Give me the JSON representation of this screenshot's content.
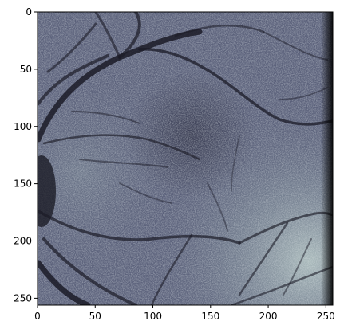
{
  "figure": {
    "image_kind": "retinal-fundus-scan",
    "colormap": "bone",
    "colors": {
      "dark": "#2a2c3d",
      "mid": "#5a607a",
      "light": "#9fb0b2",
      "highlight": "#c8d8d4",
      "vessel": "#1b1b27"
    }
  },
  "axes": {
    "x_range": [
      0,
      256
    ],
    "y_range": [
      0,
      256
    ],
    "y_inverted": true,
    "x_ticks": [
      {
        "value": 0,
        "label": "0"
      },
      {
        "value": 50,
        "label": "50"
      },
      {
        "value": 100,
        "label": "100"
      },
      {
        "value": 150,
        "label": "150"
      },
      {
        "value": 200,
        "label": "200"
      },
      {
        "value": 250,
        "label": "250"
      }
    ],
    "y_ticks": [
      {
        "value": 0,
        "label": "0"
      },
      {
        "value": 50,
        "label": "50"
      },
      {
        "value": 100,
        "label": "100"
      },
      {
        "value": 150,
        "label": "150"
      },
      {
        "value": 200,
        "label": "200"
      },
      {
        "value": 250,
        "label": "250"
      }
    ]
  }
}
